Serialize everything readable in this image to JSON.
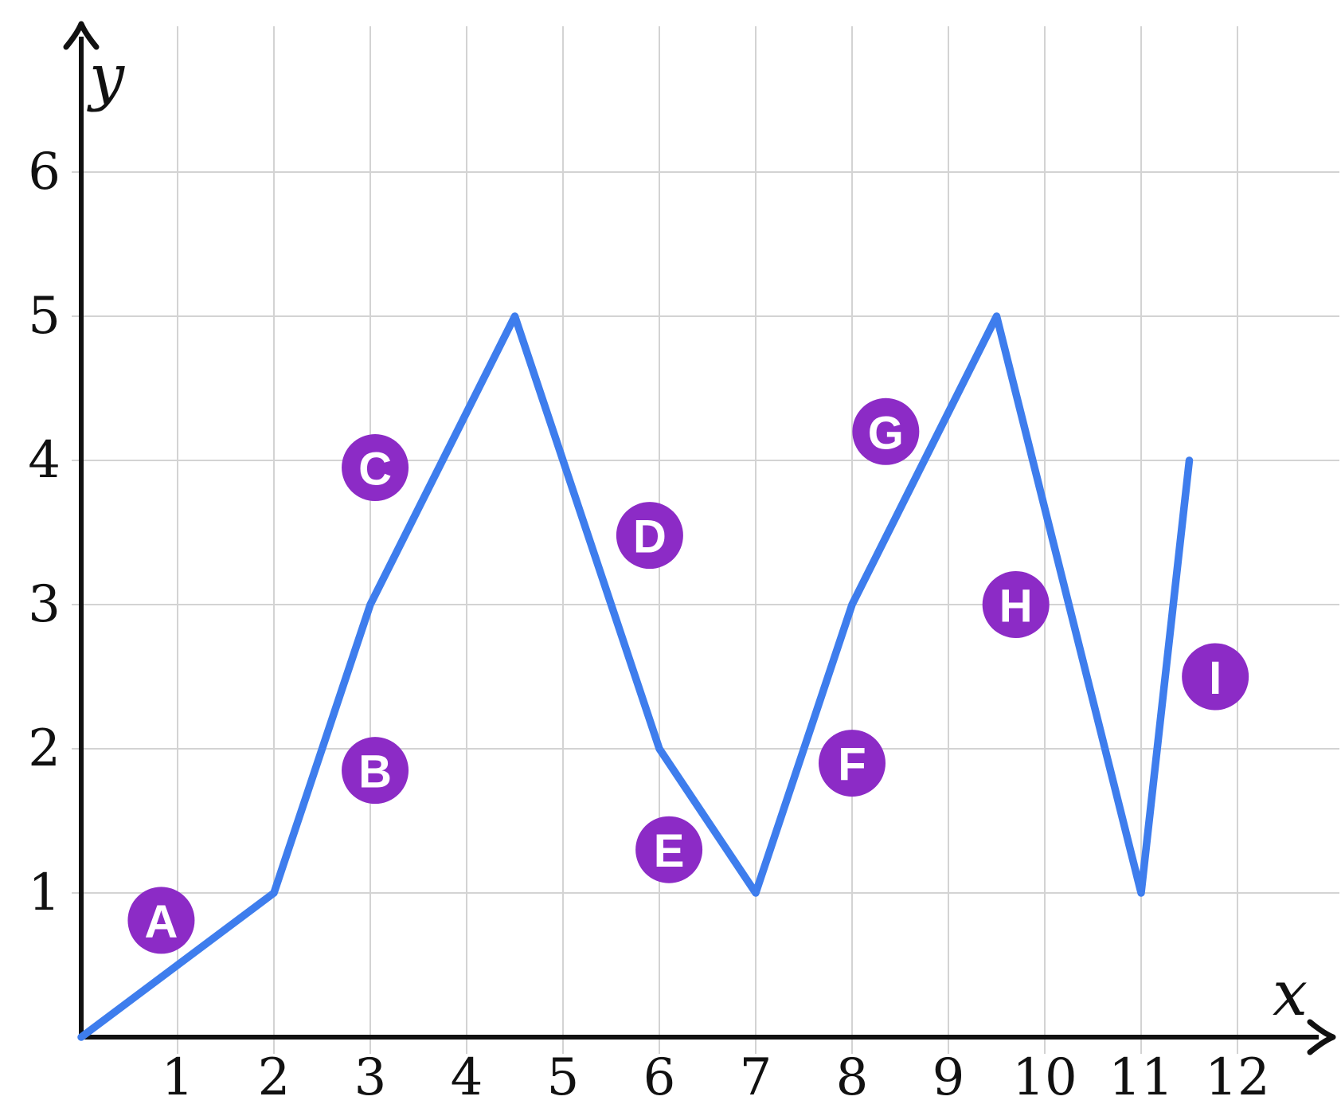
{
  "chart_data": {
    "type": "line",
    "title": "",
    "xlabel": "x",
    "ylabel": "y",
    "x_tick_labels": [
      "1",
      "2",
      "3",
      "4",
      "5",
      "6",
      "7",
      "8",
      "9",
      "10",
      "11",
      "12"
    ],
    "y_tick_labels": [
      "1",
      "2",
      "3",
      "4",
      "5",
      "6"
    ],
    "xlim": [
      0,
      13
    ],
    "ylim": [
      0,
      7
    ],
    "grid": true,
    "legend": "none",
    "series": [
      {
        "name": "blue-polyline",
        "points": [
          [
            0,
            0
          ],
          [
            2,
            1
          ],
          [
            3,
            3
          ],
          [
            4.5,
            5
          ],
          [
            6,
            2
          ],
          [
            7,
            1
          ],
          [
            8,
            3
          ],
          [
            9.5,
            5
          ],
          [
            11,
            1
          ],
          [
            11.5,
            4
          ]
        ]
      }
    ],
    "point_labels": [
      {
        "label": "A",
        "x": 0.83,
        "y": 0.81
      },
      {
        "label": "B",
        "x": 3.05,
        "y": 1.85
      },
      {
        "label": "C",
        "x": 3.05,
        "y": 3.95
      },
      {
        "label": "D",
        "x": 5.9,
        "y": 3.48
      },
      {
        "label": "E",
        "x": 6.1,
        "y": 1.3
      },
      {
        "label": "F",
        "x": 8.0,
        "y": 1.9
      },
      {
        "label": "G",
        "x": 8.35,
        "y": 4.2
      },
      {
        "label": "H",
        "x": 9.7,
        "y": 3.0
      },
      {
        "label": "I",
        "x": 11.77,
        "y": 2.5
      }
    ],
    "colors": {
      "line": "#3e7ded",
      "marker_fill": "#8c2bc6",
      "marker_text": "#ffffff",
      "grid": "#d3d3d3",
      "axis": "#111111",
      "background": "#ffffff"
    }
  }
}
